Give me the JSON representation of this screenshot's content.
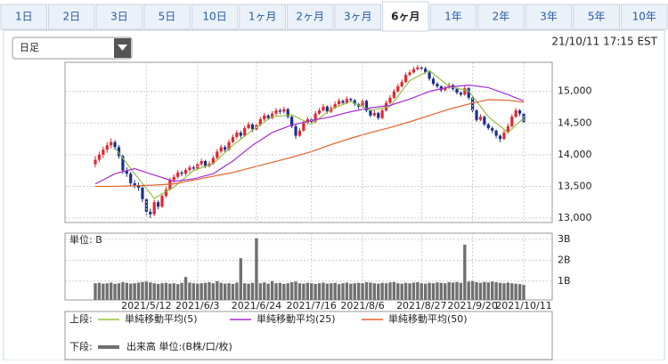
{
  "tabs": {
    "items": [
      "1日",
      "2日",
      "3日",
      "5日",
      "10日",
      "1ヶ月",
      "2ヶ月",
      "3ヶ月",
      "6ヶ月",
      "1年",
      "2年",
      "3年",
      "5年",
      "10年"
    ],
    "active": 8
  },
  "dropdown": {
    "label": "日足"
  },
  "timestamp": "21/10/11 17:15 EST",
  "legend": {
    "upper_label": "上段:",
    "lower_label": "下段:"
  },
  "chart_data": [
    {
      "type": "candlestick",
      "up_color": "#e3262d",
      "down_color": "#1b2f8f",
      "grid": true,
      "ylim": [
        12930,
        15460
      ],
      "yticks": [
        {
          "value": 13000,
          "label": "13,000"
        },
        {
          "value": 13500,
          "label": "13,500"
        },
        {
          "value": 14000,
          "label": "14,000"
        },
        {
          "value": 14500,
          "label": "14,500"
        },
        {
          "value": 15000,
          "label": "15,000"
        }
      ],
      "ohlc": [
        [
          13850,
          13980,
          13800,
          13920
        ],
        [
          13920,
          14050,
          13880,
          14000
        ],
        [
          14000,
          14130,
          13950,
          14080
        ],
        [
          14080,
          14200,
          14030,
          14150
        ],
        [
          14150,
          14260,
          14100,
          14200
        ],
        [
          14200,
          14230,
          14080,
          14120
        ],
        [
          14120,
          14150,
          13940,
          13980
        ],
        [
          13980,
          14000,
          13700,
          13750
        ],
        [
          13750,
          13800,
          13650,
          13700
        ],
        [
          13700,
          13730,
          13500,
          13550
        ],
        [
          13550,
          13600,
          13470,
          13520
        ],
        [
          13520,
          13560,
          13430,
          13480
        ],
        [
          13480,
          13500,
          13250,
          13300
        ],
        [
          13300,
          13320,
          13050,
          13100
        ],
        [
          13100,
          13150,
          13000,
          13060
        ],
        [
          13060,
          13290,
          13030,
          13250
        ],
        [
          13250,
          13280,
          13140,
          13180
        ],
        [
          13180,
          13390,
          13160,
          13350
        ],
        [
          13350,
          13490,
          13320,
          13450
        ],
        [
          13450,
          13640,
          13430,
          13600
        ],
        [
          13600,
          13690,
          13560,
          13650
        ],
        [
          13650,
          13760,
          13620,
          13720
        ],
        [
          13720,
          13750,
          13660,
          13700
        ],
        [
          13700,
          13790,
          13670,
          13760
        ],
        [
          13760,
          13840,
          13720,
          13800
        ],
        [
          13800,
          13830,
          13740,
          13780
        ],
        [
          13780,
          13890,
          13750,
          13850
        ],
        [
          13850,
          13940,
          13820,
          13900
        ],
        [
          13900,
          13920,
          13790,
          13820
        ],
        [
          13820,
          13900,
          13800,
          13860
        ],
        [
          13860,
          13990,
          13840,
          13950
        ],
        [
          13950,
          14090,
          13930,
          14050
        ],
        [
          14050,
          14160,
          14020,
          14120
        ],
        [
          14120,
          14150,
          14040,
          14080
        ],
        [
          14080,
          14240,
          14060,
          14200
        ],
        [
          14200,
          14320,
          14180,
          14280
        ],
        [
          14280,
          14390,
          14250,
          14350
        ],
        [
          14350,
          14380,
          14260,
          14300
        ],
        [
          14300,
          14460,
          14280,
          14420
        ],
        [
          14420,
          14520,
          14400,
          14480
        ],
        [
          14480,
          14500,
          14360,
          14400
        ],
        [
          14400,
          14510,
          14380,
          14470
        ],
        [
          14470,
          14600,
          14450,
          14560
        ],
        [
          14560,
          14660,
          14530,
          14620
        ],
        [
          14620,
          14640,
          14550,
          14580
        ],
        [
          14580,
          14690,
          14560,
          14650
        ],
        [
          14650,
          14740,
          14620,
          14700
        ],
        [
          14700,
          14730,
          14640,
          14680
        ],
        [
          14680,
          14760,
          14650,
          14720
        ],
        [
          14720,
          14740,
          14570,
          14600
        ],
        [
          14600,
          14620,
          14420,
          14450
        ],
        [
          14450,
          14480,
          14250,
          14300
        ],
        [
          14300,
          14420,
          14280,
          14380
        ],
        [
          14380,
          14540,
          14360,
          14500
        ],
        [
          14500,
          14600,
          14480,
          14560
        ],
        [
          14560,
          14580,
          14490,
          14520
        ],
        [
          14520,
          14690,
          14500,
          14650
        ],
        [
          14650,
          14740,
          14630,
          14700
        ],
        [
          14700,
          14800,
          14680,
          14760
        ],
        [
          14760,
          14780,
          14650,
          14680
        ],
        [
          14680,
          14780,
          14660,
          14740
        ],
        [
          14740,
          14840,
          14720,
          14800
        ],
        [
          14800,
          14890,
          14780,
          14850
        ],
        [
          14850,
          14870,
          14790,
          14820
        ],
        [
          14820,
          14920,
          14800,
          14880
        ],
        [
          14880,
          14900,
          14830,
          14860
        ],
        [
          14860,
          14880,
          14770,
          14800
        ],
        [
          14800,
          14820,
          14720,
          14760
        ],
        [
          14760,
          14890,
          14740,
          14850
        ],
        [
          14850,
          14870,
          14670,
          14700
        ],
        [
          14700,
          14720,
          14590,
          14620
        ],
        [
          14620,
          14700,
          14600,
          14660
        ],
        [
          14660,
          14680,
          14550,
          14580
        ],
        [
          14580,
          14740,
          14560,
          14700
        ],
        [
          14700,
          14860,
          14680,
          14820
        ],
        [
          14820,
          14940,
          14800,
          14900
        ],
        [
          14900,
          15040,
          14880,
          15000
        ],
        [
          15000,
          15120,
          14980,
          15080
        ],
        [
          15080,
          15190,
          15060,
          15150
        ],
        [
          15150,
          15300,
          15130,
          15260
        ],
        [
          15260,
          15340,
          15240,
          15300
        ],
        [
          15300,
          15390,
          15280,
          15350
        ],
        [
          15350,
          15420,
          15330,
          15380
        ],
        [
          15380,
          15410,
          15320,
          15360
        ],
        [
          15360,
          15390,
          15280,
          15300
        ],
        [
          15300,
          15320,
          15170,
          15200
        ],
        [
          15200,
          15230,
          15090,
          15120
        ],
        [
          15120,
          15150,
          15050,
          15080
        ],
        [
          15080,
          15100,
          14990,
          15020
        ],
        [
          15020,
          15090,
          15000,
          15060
        ],
        [
          15060,
          15140,
          15040,
          15100
        ],
        [
          15100,
          15120,
          15010,
          15040
        ],
        [
          15040,
          15060,
          14950,
          14980
        ],
        [
          14980,
          15000,
          14920,
          14950
        ],
        [
          14950,
          15090,
          14930,
          15050
        ],
        [
          15050,
          15070,
          14870,
          14900
        ],
        [
          14900,
          14920,
          14670,
          14700
        ],
        [
          14700,
          14720,
          14520,
          14550
        ],
        [
          14550,
          14640,
          14530,
          14600
        ],
        [
          14600,
          14620,
          14450,
          14480
        ],
        [
          14480,
          14500,
          14390,
          14420
        ],
        [
          14420,
          14450,
          14340,
          14380
        ],
        [
          14380,
          14400,
          14260,
          14300
        ],
        [
          14300,
          14320,
          14200,
          14250
        ],
        [
          14250,
          14390,
          14230,
          14350
        ],
        [
          14350,
          14490,
          14330,
          14450
        ],
        [
          14450,
          14640,
          14430,
          14600
        ],
        [
          14600,
          14740,
          14580,
          14700
        ],
        [
          14700,
          14720,
          14610,
          14650
        ],
        [
          14650,
          14670,
          14490,
          14520
        ]
      ],
      "series": [
        {
          "name": "単純移動平均(5)",
          "color": "#93c13f",
          "x": [
            5,
            10,
            15,
            20,
            25,
            30,
            35,
            40,
            45,
            50,
            55,
            60,
            65,
            70,
            75,
            80,
            85,
            90,
            95,
            100,
            105,
            109
          ],
          "values": [
            14110,
            13700,
            13310,
            13490,
            13750,
            13860,
            14150,
            14390,
            14600,
            14630,
            14480,
            14720,
            14840,
            14700,
            14760,
            15170,
            15330,
            15080,
            15010,
            14600,
            14350,
            14580
          ]
        },
        {
          "name": "単純移動平均(25)",
          "color": "#a62bd4",
          "x": [
            0,
            5,
            10,
            15,
            20,
            25,
            30,
            35,
            40,
            45,
            50,
            55,
            60,
            65,
            70,
            75,
            80,
            85,
            90,
            95,
            100,
            105,
            109
          ],
          "values": [
            13540,
            13700,
            13780,
            13680,
            13580,
            13620,
            13700,
            13900,
            14150,
            14350,
            14470,
            14540,
            14600,
            14680,
            14740,
            14780,
            14880,
            15000,
            15070,
            15100,
            15060,
            14950,
            14850
          ]
        },
        {
          "name": "単純移動平均(50)",
          "color": "#e2612c",
          "x": [
            0,
            5,
            10,
            15,
            20,
            25,
            30,
            35,
            40,
            45,
            50,
            55,
            60,
            65,
            70,
            75,
            80,
            85,
            90,
            95,
            100,
            105,
            109
          ],
          "values": [
            13500,
            13500,
            13510,
            13520,
            13540,
            13600,
            13660,
            13720,
            13800,
            13880,
            13960,
            14050,
            14160,
            14260,
            14350,
            14430,
            14520,
            14620,
            14720,
            14800,
            14870,
            14860,
            14830
          ]
        }
      ]
    },
    {
      "type": "bar",
      "unit_label": "単位: B",
      "grid": true,
      "ylim": [
        0.1,
        3.3
      ],
      "yticks": [
        {
          "value": 1,
          "label": "1B"
        },
        {
          "value": 2,
          "label": "2B"
        },
        {
          "value": 3,
          "label": "3B"
        }
      ],
      "categories": [
        null,
        null,
        null,
        null,
        null,
        null,
        null,
        null,
        null,
        null,
        null,
        null,
        null,
        "2021/5/12",
        null,
        null,
        null,
        null,
        null,
        null,
        null,
        null,
        null,
        null,
        null,
        null,
        "2021/6/3",
        null,
        null,
        null,
        null,
        null,
        null,
        null,
        null,
        null,
        null,
        null,
        null,
        null,
        null,
        "2021/6/24",
        null,
        null,
        null,
        null,
        null,
        null,
        null,
        null,
        null,
        null,
        null,
        null,
        null,
        "2021/7/16",
        null,
        null,
        null,
        null,
        null,
        null,
        null,
        null,
        null,
        null,
        null,
        null,
        "2021/8/6",
        null,
        null,
        null,
        null,
        null,
        null,
        null,
        null,
        null,
        null,
        null,
        null,
        null,
        null,
        "2021/8/27",
        null,
        null,
        null,
        null,
        null,
        null,
        null,
        null,
        null,
        null,
        null,
        null,
        "2021/9/20",
        null,
        null,
        null,
        null,
        null,
        null,
        null,
        null,
        null,
        null,
        null,
        null,
        "2021/10/11"
      ],
      "series": [
        {
          "name": "出来高 単位:(B株/口/枚)",
          "color": "#707070",
          "values": [
            0.9,
            0.92,
            0.88,
            0.9,
            0.93,
            0.87,
            0.9,
            0.95,
            0.92,
            0.88,
            0.9,
            0.93,
            0.96,
            0.98,
            0.94,
            0.9,
            0.87,
            0.9,
            0.92,
            0.88,
            0.9,
            0.86,
            0.92,
            1.2,
            0.93,
            0.9,
            0.88,
            0.9,
            0.92,
            0.95,
            0.9,
            1.0,
            0.92,
            0.88,
            0.9,
            0.87,
            0.93,
            2.1,
            0.9,
            0.88,
            0.92,
            3.05,
            0.9,
            0.94,
            0.88,
            1.0,
            0.9,
            0.92,
            0.87,
            0.9,
            0.95,
            0.98,
            0.9,
            0.88,
            0.92,
            0.9,
            0.87,
            0.9,
            0.93,
            0.88,
            0.9,
            0.92,
            0.86,
            0.9,
            0.93,
            0.88,
            0.9,
            0.92,
            0.9,
            0.95,
            0.93,
            0.9,
            0.88,
            0.92,
            0.9,
            0.94,
            0.96,
            0.9,
            0.88,
            0.92,
            0.9,
            0.93,
            0.95,
            0.9,
            0.88,
            0.92,
            0.9,
            0.94,
            0.92,
            0.9,
            0.95,
            0.93,
            0.96,
            0.92,
            2.75,
            0.98,
            1.0,
            0.95,
            0.92,
            0.96,
            0.94,
            0.98,
            0.95,
            0.92,
            0.9,
            0.93,
            0.9,
            0.88,
            0.86,
            0.82
          ]
        }
      ]
    }
  ]
}
